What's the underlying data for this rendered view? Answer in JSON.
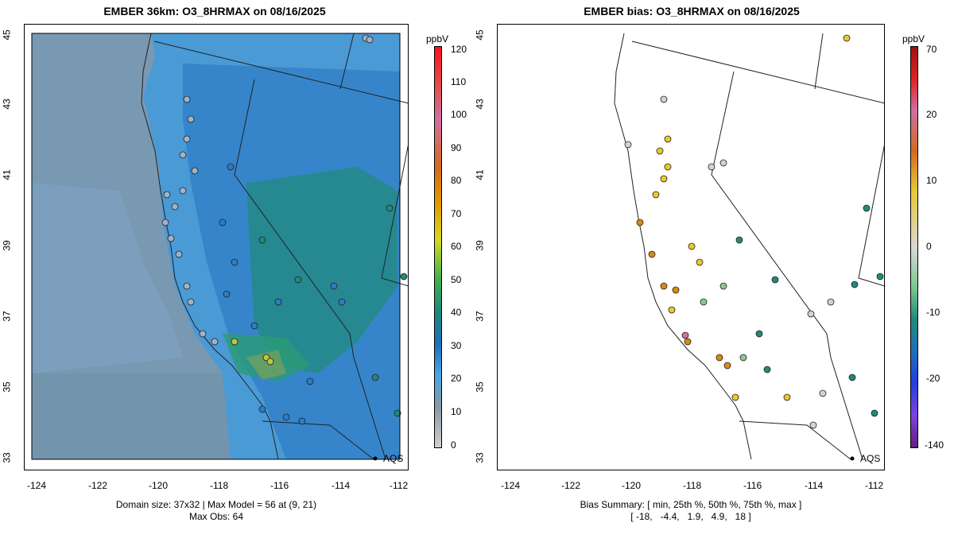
{
  "left": {
    "title": "EMBER 36km: O3_8HRMAX on 08/16/2025",
    "units": "ppbV",
    "colorbar_ticks": [
      "120",
      "110",
      "100",
      "90",
      "80",
      "70",
      "60",
      "50",
      "40",
      "30",
      "20",
      "10",
      "0"
    ],
    "footer_line1": "Domain size: 37x32 | Max Model = 56 at (9, 21)",
    "footer_line2": "Max Obs: 64",
    "aqs_label": "AQS"
  },
  "right": {
    "title": "EMBER bias: O3_8HRMAX on 08/16/2025",
    "units": "ppbV",
    "colorbar_ticks": [
      "70",
      "20",
      "10",
      "0",
      "-10",
      "-20",
      "-140"
    ],
    "footer_line1": "Bias Summary: [ min, 25th %, 50th %, 75th %, max ]",
    "footer_line2": "[ -18,   -4.4,   1.9,   4.9,   18 ]",
    "aqs_label": "AQS"
  },
  "x_ticks": [
    "-124",
    "-122",
    "-120",
    "-118",
    "-116",
    "-114",
    "-112"
  ],
  "y_ticks": [
    "45",
    "43",
    "41",
    "39",
    "37",
    "35",
    "33"
  ],
  "colors": {
    "ocean_model": "#4a9ad6",
    "low_model": "#8a98a6",
    "high_model": "#1f8a7a"
  }
}
